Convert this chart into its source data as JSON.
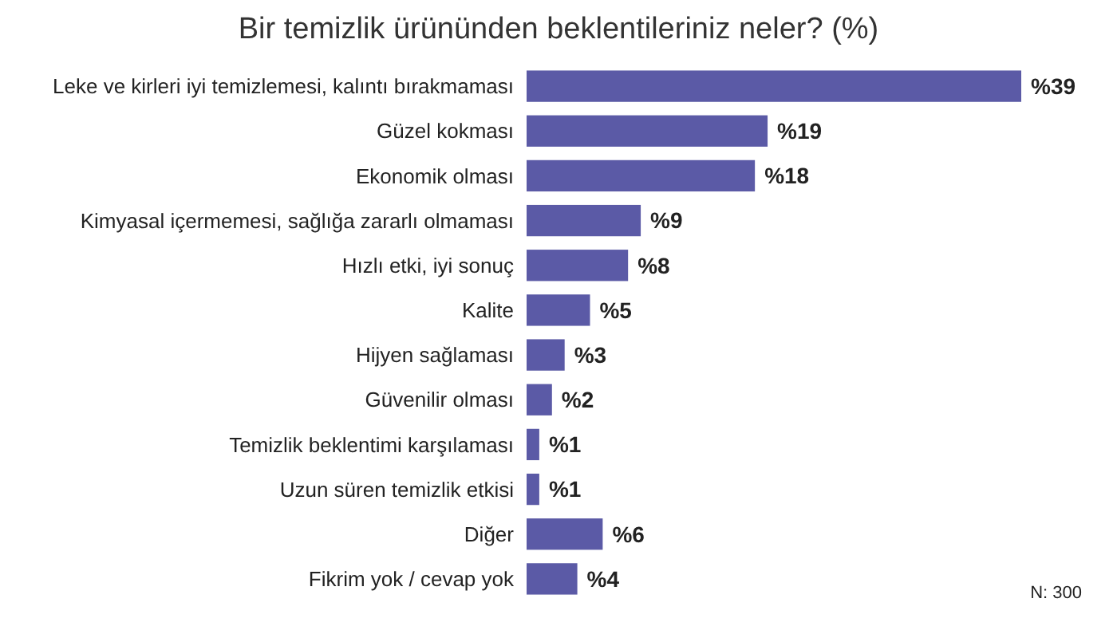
{
  "chart_data": {
    "type": "bar",
    "orientation": "horizontal",
    "title": "Bir temizlik ürününden beklentileriniz neler? (%)",
    "categories": [
      "Leke ve kirleri iyi temizlemesi, kalıntı bırakmaması",
      "Güzel kokması",
      "Ekonomik olması",
      "Kimyasal içermemesi, sağlığa zararlı olmaması",
      "Hızlı etki, iyi sonuç",
      "Kalite",
      "Hijyen sağlaması",
      "Güvenilir olması",
      "Temizlik beklentimi karşılaması",
      "Uzun süren temizlik etkisi",
      "Diğer",
      "Fikrim yok / cevap yok"
    ],
    "values": [
      39,
      19,
      18,
      9,
      8,
      5,
      3,
      2,
      1,
      1,
      6,
      4
    ],
    "value_labels": [
      "%39",
      "%19",
      "%18",
      "%9",
      "%8",
      "%5",
      "%3",
      "%2",
      "%1",
      "%1",
      "%6",
      "%4"
    ],
    "color": "#5b5aa6",
    "annotations": [
      "N: 300"
    ]
  }
}
